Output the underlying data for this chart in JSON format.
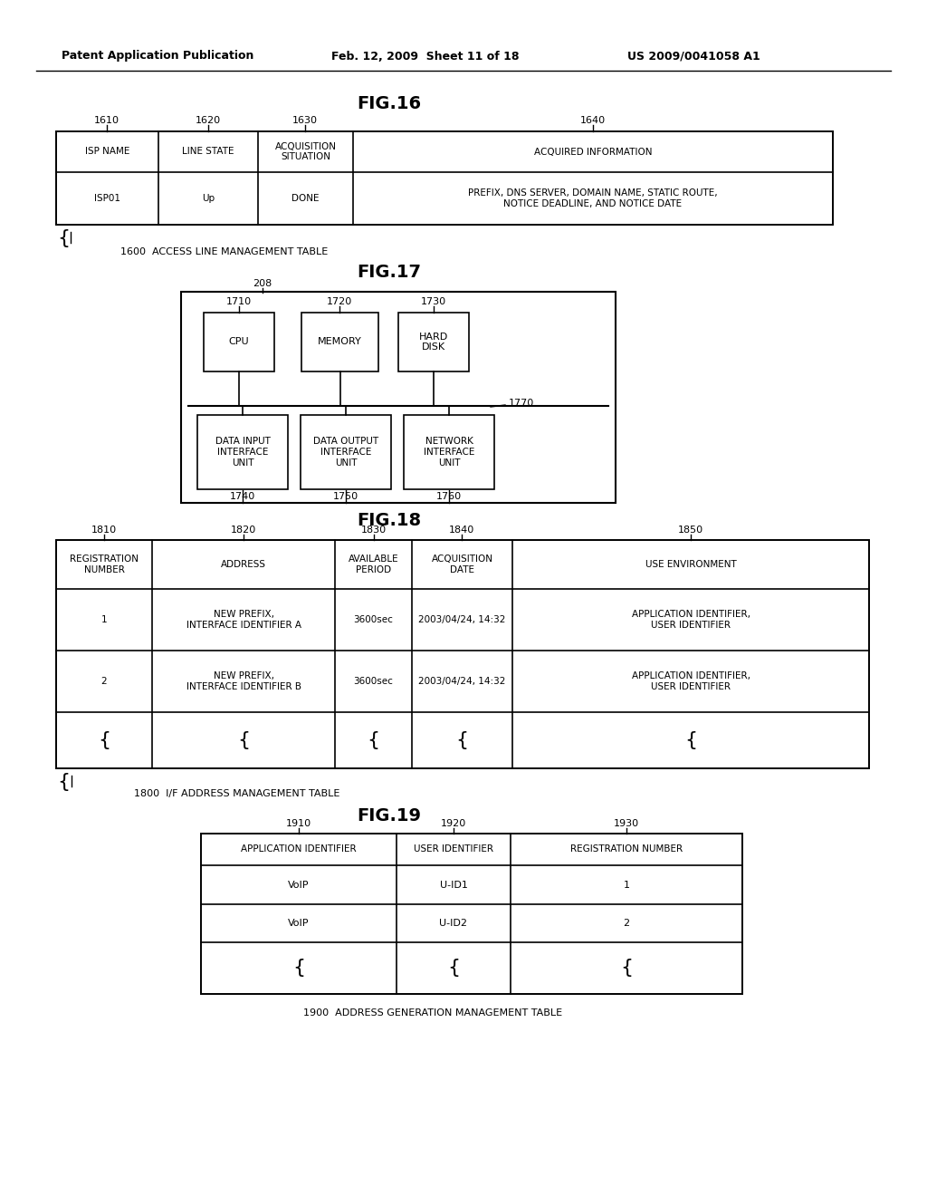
{
  "bg_color": "#ffffff",
  "header_left": "Patent Application Publication",
  "header_mid": "Feb. 12, 2009  Sheet 11 of 18",
  "header_right": "US 2009/0041058 A1",
  "fig16_title": "FIG.16",
  "fig16_labels": [
    "1610",
    "1620",
    "1630",
    "1640"
  ],
  "fig16_label_note": "1600  ACCESS LINE MANAGEMENT TABLE",
  "fig16_headers": [
    "ISP NAME",
    "LINE STATE",
    "ACQUISITION\nSITUATION",
    "ACQUIRED INFORMATION"
  ],
  "fig16_row1": [
    "ISP01",
    "Up",
    "DONE",
    "PREFIX, DNS SERVER, DOMAIN NAME, STATIC ROUTE,\nNOTICE DEADLINE, AND NOTICE DATE"
  ],
  "fig17_title": "FIG.17",
  "fig17_label_208": "208",
  "fig17_labels_top": [
    "1710",
    "1720",
    "1730"
  ],
  "fig17_boxes_top": [
    "CPU",
    "MEMORY",
    "HARD\nDISK"
  ],
  "fig17_label_1770": "1770",
  "fig17_labels_bot": [
    "1740",
    "1750",
    "1760"
  ],
  "fig17_boxes_bot": [
    "DATA INPUT\nINTERFACE\nUNIT",
    "DATA OUTPUT\nINTERFACE\nUNIT",
    "NETWORK\nINTERFACE\nUNIT"
  ],
  "fig18_title": "FIG.18",
  "fig18_labels": [
    "1810",
    "1820",
    "1830",
    "1840",
    "1850"
  ],
  "fig18_label_note": "1800  I/F ADDRESS MANAGEMENT TABLE",
  "fig18_headers": [
    "REGISTRATION\nNUMBER",
    "ADDRESS",
    "AVAILABLE\nPERIOD",
    "ACQUISITION\nDATE",
    "USE ENVIRONMENT"
  ],
  "fig18_row1": [
    "1",
    "NEW PREFIX,\nINTERFACE IDENTIFIER A",
    "3600sec",
    "2003/04/24, 14:32",
    "APPLICATION IDENTIFIER,\nUSER IDENTIFIER"
  ],
  "fig18_row2": [
    "2",
    "NEW PREFIX,\nINTERFACE IDENTIFIER B",
    "3600sec",
    "2003/04/24, 14:32",
    "APPLICATION IDENTIFIER,\nUSER IDENTIFIER"
  ],
  "fig18_cont": [
    "{",
    "{",
    "{",
    "{",
    "{"
  ],
  "fig19_title": "FIG.19",
  "fig19_labels": [
    "1910",
    "1920",
    "1930"
  ],
  "fig19_label_note": "1900  ADDRESS GENERATION MANAGEMENT TABLE",
  "fig19_headers": [
    "APPLICATION IDENTIFIER",
    "USER IDENTIFIER",
    "REGISTRATION NUMBER"
  ],
  "fig19_row1": [
    "VoIP",
    "U-ID1",
    "1"
  ],
  "fig19_row2": [
    "VoIP",
    "U-ID2",
    "2"
  ],
  "fig19_cont": [
    "{",
    "{",
    "{"
  ]
}
